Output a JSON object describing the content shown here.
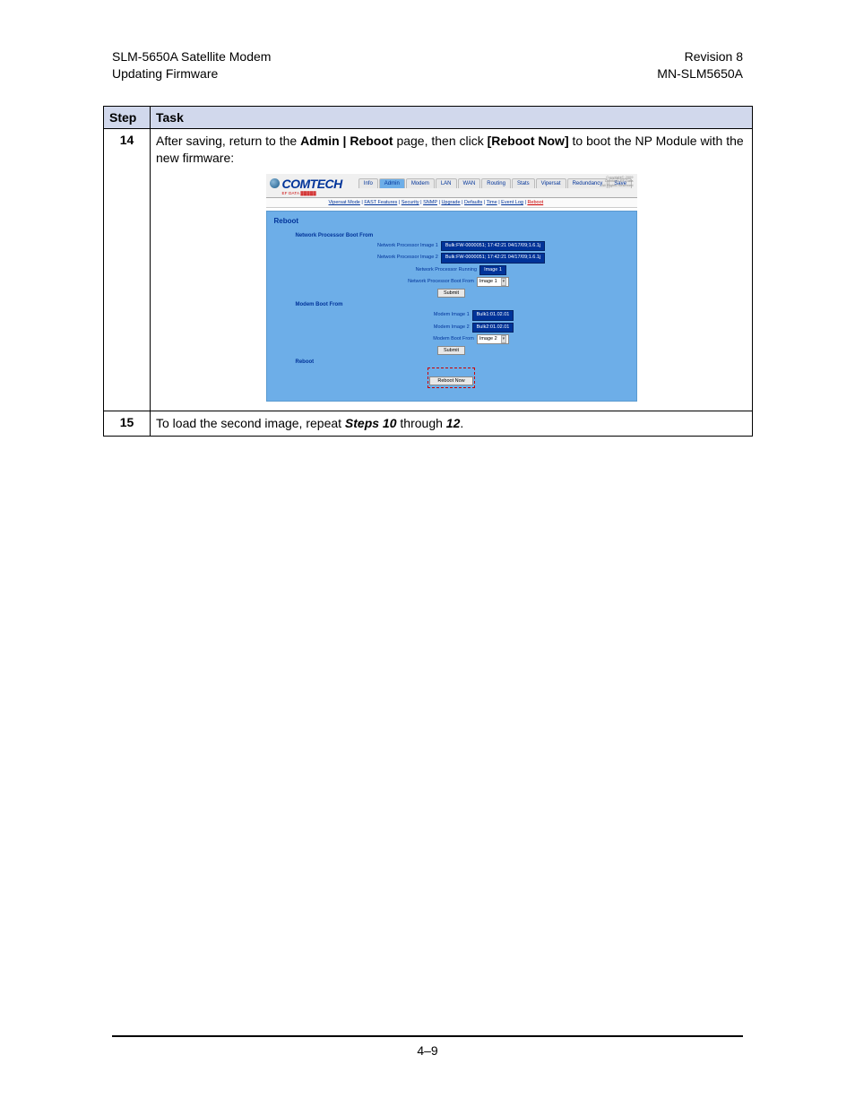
{
  "page": {
    "header_left_line1": "SLM-5650A Satellite Modem",
    "header_left_line2": "Updating Firmware",
    "header_right_line1": "Revision 8",
    "header_right_line2": "MN-SLM5650A",
    "footer": "4–9"
  },
  "table": {
    "head_step": "Step",
    "head_task": "Task",
    "rows": [
      {
        "step": "14",
        "task_pre": "After saving, return to the ",
        "task_bold1": "Admin | Reboot",
        "task_mid1": " page, then click ",
        "task_bold2": "[Reboot Now]",
        "task_mid2": " to boot the NP Module with the new firmware:"
      },
      {
        "step": "15",
        "task_pre": "To load the second image, repeat ",
        "task_italic": "Steps 10",
        "task_mid": " through ",
        "task_italic2": "12",
        "task_post": "."
      }
    ]
  },
  "embed": {
    "logo_main": "COMTECH",
    "logo_sub": "EF DATA ▓▓▓▓▓",
    "copyright": "Copyright© 2009\nComtech EF Data\nAll Rights Reserved",
    "tabs": [
      "Info",
      "Admin",
      "Modem",
      "LAN",
      "WAN",
      "Routing",
      "Stats",
      "Vipersat",
      "Redundancy",
      "Save"
    ],
    "active_tab": 1,
    "subnav": [
      "Vipersat Mode",
      "FAST Features",
      "Security",
      "SNMP",
      "Upgrade",
      "Defaults",
      "Time",
      "Event Log",
      "Reboot"
    ],
    "subnav_active": 8,
    "panel_title": "Reboot",
    "section1": {
      "title": "Network Processor Boot From",
      "rows": [
        {
          "label": "Network Processor Image 1",
          "value": "Bulk:FW-0000051; 17:42:21 04/17/09;1.6.1j",
          "type": "val"
        },
        {
          "label": "Network Processor Image 2",
          "value": "Bulk:FW-0000051; 17:42:21 04/17/09;1.6.1j",
          "type": "val"
        },
        {
          "label": "Network Processor Running",
          "value": "Image 1",
          "type": "val"
        },
        {
          "label": "Network Processor Boot From",
          "value": "Image 1",
          "type": "select"
        }
      ],
      "submit": "Submit"
    },
    "section2": {
      "title": "Modem Boot From",
      "rows": [
        {
          "label": "Modem Image 1",
          "value": "Bulk1:01.02.01",
          "type": "val"
        },
        {
          "label": "Modem Image 2",
          "value": "Bulk2:01.02.01",
          "type": "val"
        },
        {
          "label": "Modem Boot From",
          "value": "Image 2",
          "type": "select"
        }
      ],
      "submit": "Submit"
    },
    "section3": {
      "title": "Reboot",
      "button": "Reboot Now"
    }
  },
  "colors": {
    "header_bg": "#d1d8ec",
    "panel_bg": "#6daee8",
    "accent_blue": "#003399",
    "highlight_red": "#c00000",
    "value_bg": "#003399"
  }
}
